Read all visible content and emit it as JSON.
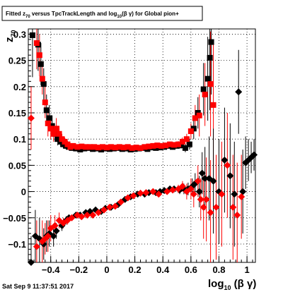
{
  "chart_data": {
    "type": "scatter",
    "title_text": "Fitted  z",
    "title_sub": "70",
    "title_mid": " versus TpcTrackLength and log",
    "title_sub2": "10",
    "title_end": "(β γ) for Global pion+",
    "xlabel": "log",
    "xlabel_sub": "10",
    "xlabel_end": " (β γ)",
    "ylabel": "z",
    "ylabel_sub": "70",
    "xlim": [
      -0.56,
      1.06
    ],
    "ylim": [
      -0.135,
      0.31
    ],
    "xticks": [
      -0.4,
      -0.2,
      0,
      0.2,
      0.4,
      0.6,
      0.8,
      1
    ],
    "xtick_labels": [
      "−0.4",
      "−0.2",
      "0",
      "0.2",
      "0.4",
      "0.6",
      "0.8",
      "1"
    ],
    "yticks": [
      -0.1,
      -0.05,
      0,
      0.05,
      0.1,
      0.15,
      0.2,
      0.25,
      0.3
    ],
    "ytick_labels": [
      "−0.1",
      "−0.05",
      "0",
      "0.05",
      "0.1",
      "0.15",
      "0.2",
      "0.25",
      "0.3"
    ],
    "grid": true,
    "footer": "Sat Sep  9 11:37:51 2017",
    "colors": {
      "black_series": "#000000",
      "red_series": "#ff0000",
      "grid": "#000000",
      "frame": "#000000"
    },
    "series": [
      {
        "marker": "square",
        "color": "#000000",
        "points": [
          {
            "x": -0.53,
            "y": 0.298,
            "err": 0.08
          },
          {
            "x": -0.49,
            "y": 0.28,
            "err": 0.05
          },
          {
            "x": -0.47,
            "y": 0.243,
            "err": 0.04
          },
          {
            "x": -0.45,
            "y": 0.205,
            "err": 0.03
          },
          {
            "x": -0.43,
            "y": 0.155,
            "err": 0.03
          },
          {
            "x": -0.41,
            "y": 0.14,
            "err": 0.025
          },
          {
            "x": -0.39,
            "y": 0.125,
            "err": 0.02
          },
          {
            "x": -0.37,
            "y": 0.11,
            "err": 0.015
          },
          {
            "x": -0.35,
            "y": 0.1,
            "err": 0.012
          },
          {
            "x": -0.33,
            "y": 0.095,
            "err": 0.01
          },
          {
            "x": -0.31,
            "y": 0.09,
            "err": 0.008
          },
          {
            "x": -0.29,
            "y": 0.087,
            "err": 0.007
          },
          {
            "x": -0.27,
            "y": 0.085,
            "err": 0.006
          },
          {
            "x": -0.25,
            "y": 0.083,
            "err": 0.005
          },
          {
            "x": -0.22,
            "y": 0.082,
            "err": 0.005
          },
          {
            "x": -0.19,
            "y": 0.08,
            "err": 0.004
          },
          {
            "x": -0.16,
            "y": 0.082,
            "err": 0.004
          },
          {
            "x": -0.13,
            "y": 0.083,
            "err": 0.004
          },
          {
            "x": -0.1,
            "y": 0.081,
            "err": 0.004
          },
          {
            "x": -0.07,
            "y": 0.082,
            "err": 0.004
          },
          {
            "x": -0.04,
            "y": 0.08,
            "err": 0.004
          },
          {
            "x": -0.01,
            "y": 0.082,
            "err": 0.004
          },
          {
            "x": 0.02,
            "y": 0.081,
            "err": 0.004
          },
          {
            "x": 0.05,
            "y": 0.082,
            "err": 0.004
          },
          {
            "x": 0.08,
            "y": 0.083,
            "err": 0.004
          },
          {
            "x": 0.11,
            "y": 0.081,
            "err": 0.004
          },
          {
            "x": 0.14,
            "y": 0.082,
            "err": 0.004
          },
          {
            "x": 0.17,
            "y": 0.08,
            "err": 0.004
          },
          {
            "x": 0.2,
            "y": 0.081,
            "err": 0.004
          },
          {
            "x": 0.23,
            "y": 0.082,
            "err": 0.004
          },
          {
            "x": 0.26,
            "y": 0.083,
            "err": 0.004
          },
          {
            "x": 0.29,
            "y": 0.081,
            "err": 0.004
          },
          {
            "x": 0.32,
            "y": 0.084,
            "err": 0.004
          },
          {
            "x": 0.35,
            "y": 0.083,
            "err": 0.004
          },
          {
            "x": 0.38,
            "y": 0.084,
            "err": 0.004
          },
          {
            "x": 0.41,
            "y": 0.085,
            "err": 0.005
          },
          {
            "x": 0.44,
            "y": 0.087,
            "err": 0.005
          },
          {
            "x": 0.47,
            "y": 0.085,
            "err": 0.005
          },
          {
            "x": 0.5,
            "y": 0.087,
            "err": 0.005
          },
          {
            "x": 0.53,
            "y": 0.088,
            "err": 0.006
          },
          {
            "x": 0.56,
            "y": 0.083,
            "err": 0.008
          },
          {
            "x": 0.59,
            "y": 0.09,
            "err": 0.01
          },
          {
            "x": 0.62,
            "y": 0.12,
            "err": 0.02
          },
          {
            "x": 0.65,
            "y": 0.15,
            "err": 0.03
          },
          {
            "x": 0.69,
            "y": 0.195,
            "err": 0.05
          },
          {
            "x": 0.72,
            "y": 0.215,
            "err": 0.08
          },
          {
            "x": 0.735,
            "y": 0.255,
            "err": 0.1
          },
          {
            "x": 0.745,
            "y": 0.285,
            "err": 0.1
          }
        ]
      },
      {
        "marker": "square",
        "color": "#ff0000",
        "points": [
          {
            "x": -0.5,
            "y": 0.283,
            "err": 0.05
          },
          {
            "x": -0.48,
            "y": 0.26,
            "err": 0.04
          },
          {
            "x": -0.46,
            "y": 0.215,
            "err": 0.03
          },
          {
            "x": -0.44,
            "y": 0.17,
            "err": 0.03
          },
          {
            "x": -0.42,
            "y": 0.13,
            "err": 0.025
          },
          {
            "x": -0.4,
            "y": 0.12,
            "err": 0.02
          },
          {
            "x": -0.38,
            "y": 0.11,
            "err": 0.015
          },
          {
            "x": -0.36,
            "y": 0.12,
            "err": 0.02
          },
          {
            "x": -0.34,
            "y": 0.11,
            "err": 0.015
          },
          {
            "x": -0.32,
            "y": 0.1,
            "err": 0.01
          },
          {
            "x": -0.3,
            "y": 0.095,
            "err": 0.008
          },
          {
            "x": -0.28,
            "y": 0.09,
            "err": 0.007
          },
          {
            "x": -0.26,
            "y": 0.085,
            "err": 0.006
          },
          {
            "x": -0.24,
            "y": 0.087,
            "err": 0.005
          },
          {
            "x": -0.21,
            "y": 0.085,
            "err": 0.005
          },
          {
            "x": -0.18,
            "y": 0.086,
            "err": 0.004
          },
          {
            "x": -0.15,
            "y": 0.085,
            "err": 0.004
          },
          {
            "x": -0.12,
            "y": 0.085,
            "err": 0.004
          },
          {
            "x": -0.09,
            "y": 0.085,
            "err": 0.004
          },
          {
            "x": -0.06,
            "y": 0.084,
            "err": 0.004
          },
          {
            "x": -0.03,
            "y": 0.085,
            "err": 0.004
          },
          {
            "x": 0.0,
            "y": 0.084,
            "err": 0.004
          },
          {
            "x": 0.03,
            "y": 0.085,
            "err": 0.004
          },
          {
            "x": 0.06,
            "y": 0.084,
            "err": 0.004
          },
          {
            "x": 0.09,
            "y": 0.085,
            "err": 0.004
          },
          {
            "x": 0.12,
            "y": 0.084,
            "err": 0.004
          },
          {
            "x": 0.15,
            "y": 0.085,
            "err": 0.004
          },
          {
            "x": 0.18,
            "y": 0.083,
            "err": 0.004
          },
          {
            "x": 0.21,
            "y": 0.084,
            "err": 0.004
          },
          {
            "x": 0.24,
            "y": 0.083,
            "err": 0.004
          },
          {
            "x": 0.27,
            "y": 0.085,
            "err": 0.004
          },
          {
            "x": 0.3,
            "y": 0.086,
            "err": 0.004
          },
          {
            "x": 0.33,
            "y": 0.087,
            "err": 0.004
          },
          {
            "x": 0.36,
            "y": 0.088,
            "err": 0.004
          },
          {
            "x": 0.39,
            "y": 0.087,
            "err": 0.005
          },
          {
            "x": 0.42,
            "y": 0.088,
            "err": 0.005
          },
          {
            "x": 0.45,
            "y": 0.09,
            "err": 0.005
          },
          {
            "x": 0.48,
            "y": 0.089,
            "err": 0.005
          },
          {
            "x": 0.51,
            "y": 0.09,
            "err": 0.006
          },
          {
            "x": 0.54,
            "y": 0.095,
            "err": 0.008
          },
          {
            "x": 0.57,
            "y": 0.1,
            "err": 0.01
          },
          {
            "x": 0.6,
            "y": 0.115,
            "err": 0.015
          },
          {
            "x": 0.63,
            "y": 0.14,
            "err": 0.025
          },
          {
            "x": 0.66,
            "y": 0.145,
            "err": 0.04
          },
          {
            "x": 0.7,
            "y": 0.185,
            "err": 0.06
          },
          {
            "x": 0.74,
            "y": 0.205,
            "err": 0.1
          },
          {
            "x": 0.76,
            "y": 0.165,
            "err": 0.12
          }
        ]
      },
      {
        "marker": "diamond",
        "color": "#000000",
        "points": [
          {
            "x": -0.54,
            "y": -0.135,
            "err": 0.05
          },
          {
            "x": -0.51,
            "y": -0.085,
            "err": 0.05
          },
          {
            "x": -0.48,
            "y": -0.09,
            "err": 0.04
          },
          {
            "x": -0.45,
            "y": -0.1,
            "err": 0.03
          },
          {
            "x": -0.43,
            "y": -0.085,
            "err": 0.03
          },
          {
            "x": -0.41,
            "y": -0.08,
            "err": 0.025
          },
          {
            "x": -0.38,
            "y": -0.085,
            "err": 0.02
          },
          {
            "x": -0.36,
            "y": -0.075,
            "err": 0.015
          },
          {
            "x": -0.32,
            "y": -0.065,
            "err": 0.01
          },
          {
            "x": -0.29,
            "y": -0.055,
            "err": 0.008
          },
          {
            "x": -0.27,
            "y": -0.05,
            "err": 0.006
          },
          {
            "x": -0.22,
            "y": -0.045,
            "err": 0.005
          },
          {
            "x": -0.19,
            "y": -0.045,
            "err": 0.005
          },
          {
            "x": -0.15,
            "y": -0.04,
            "err": 0.004
          },
          {
            "x": -0.12,
            "y": -0.038,
            "err": 0.004
          },
          {
            "x": -0.08,
            "y": -0.035,
            "err": 0.004
          },
          {
            "x": -0.04,
            "y": -0.038,
            "err": 0.004
          },
          {
            "x": -0.01,
            "y": -0.032,
            "err": 0.004
          },
          {
            "x": 0.03,
            "y": -0.03,
            "err": 0.004
          },
          {
            "x": 0.08,
            "y": -0.025,
            "err": 0.004
          },
          {
            "x": 0.13,
            "y": -0.015,
            "err": 0.004
          },
          {
            "x": 0.17,
            "y": -0.01,
            "err": 0.004
          },
          {
            "x": 0.22,
            "y": -0.005,
            "err": 0.004
          },
          {
            "x": 0.27,
            "y": -0.005,
            "err": 0.004
          },
          {
            "x": 0.3,
            "y": -0.002,
            "err": 0.004
          },
          {
            "x": 0.35,
            "y": -0.002,
            "err": 0.004
          },
          {
            "x": 0.38,
            "y": 0.0,
            "err": 0.005
          },
          {
            "x": 0.41,
            "y": 0.002,
            "err": 0.005
          },
          {
            "x": 0.45,
            "y": 0.005,
            "err": 0.005
          },
          {
            "x": 0.48,
            "y": 0.005,
            "err": 0.006
          },
          {
            "x": 0.52,
            "y": 0.003,
            "err": 0.008
          },
          {
            "x": 0.55,
            "y": 0.005,
            "err": 0.01
          },
          {
            "x": 0.58,
            "y": 0.005,
            "err": 0.012
          },
          {
            "x": 0.61,
            "y": 0.01,
            "err": 0.015
          },
          {
            "x": 0.63,
            "y": 0.015,
            "err": 0.02
          },
          {
            "x": 0.66,
            "y": 0.0,
            "err": 0.03
          },
          {
            "x": 0.68,
            "y": 0.035,
            "err": 0.04
          },
          {
            "x": 0.7,
            "y": 0.025,
            "err": 0.06
          },
          {
            "x": 0.73,
            "y": 0.025,
            "err": 0.08
          },
          {
            "x": 0.76,
            "y": 0.02,
            "err": 0.1
          },
          {
            "x": 0.8,
            "y": 0.0,
            "err": 0.1
          },
          {
            "x": 0.84,
            "y": 0.06,
            "err": 0.1
          },
          {
            "x": 0.88,
            "y": 0.03,
            "err": 0.1
          },
          {
            "x": 0.91,
            "y": -0.005,
            "err": 0.1
          },
          {
            "x": 0.94,
            "y": 0.19,
            "err": 0.08
          },
          {
            "x": 0.97,
            "y": 0.0,
            "err": 0.08
          },
          {
            "x": 0.99,
            "y": 0.055,
            "err": 0.05
          },
          {
            "x": 1.01,
            "y": 0.06,
            "err": 0.04
          },
          {
            "x": 1.03,
            "y": 0.065,
            "err": 0.03
          },
          {
            "x": 1.05,
            "y": 0.07,
            "err": 0.03
          }
        ]
      },
      {
        "marker": "diamond",
        "color": "#ff0000",
        "points": [
          {
            "x": -0.54,
            "y": 0.14,
            "err": 0.06
          },
          {
            "x": -0.5,
            "y": -0.105,
            "err": 0.05
          },
          {
            "x": -0.46,
            "y": -0.095,
            "err": 0.04
          },
          {
            "x": -0.44,
            "y": -0.09,
            "err": 0.03
          },
          {
            "x": -0.42,
            "y": -0.085,
            "err": 0.03
          },
          {
            "x": -0.4,
            "y": -0.07,
            "err": 0.025
          },
          {
            "x": -0.37,
            "y": -0.065,
            "err": 0.02
          },
          {
            "x": -0.34,
            "y": -0.055,
            "err": 0.015
          },
          {
            "x": -0.31,
            "y": -0.06,
            "err": 0.01
          },
          {
            "x": -0.28,
            "y": -0.055,
            "err": 0.008
          },
          {
            "x": -0.25,
            "y": -0.05,
            "err": 0.006
          },
          {
            "x": -0.21,
            "y": -0.045,
            "err": 0.005
          },
          {
            "x": -0.18,
            "y": -0.048,
            "err": 0.005
          },
          {
            "x": -0.14,
            "y": -0.045,
            "err": 0.004
          },
          {
            "x": -0.1,
            "y": -0.045,
            "err": 0.004
          },
          {
            "x": -0.06,
            "y": -0.04,
            "err": 0.004
          },
          {
            "x": -0.02,
            "y": -0.035,
            "err": 0.004
          },
          {
            "x": 0.02,
            "y": -0.03,
            "err": 0.004
          },
          {
            "x": 0.06,
            "y": -0.028,
            "err": 0.004
          },
          {
            "x": 0.1,
            "y": -0.02,
            "err": 0.004
          },
          {
            "x": 0.15,
            "y": -0.012,
            "err": 0.004
          },
          {
            "x": 0.19,
            "y": -0.008,
            "err": 0.004
          },
          {
            "x": 0.24,
            "y": -0.003,
            "err": 0.004
          },
          {
            "x": 0.28,
            "y": -0.002,
            "err": 0.004
          },
          {
            "x": 0.33,
            "y": 0.0,
            "err": 0.004
          },
          {
            "x": 0.37,
            "y": -0.005,
            "err": 0.005
          },
          {
            "x": 0.43,
            "y": 0.0,
            "err": 0.005
          },
          {
            "x": 0.47,
            "y": 0.003,
            "err": 0.006
          },
          {
            "x": 0.51,
            "y": 0.005,
            "err": 0.008
          },
          {
            "x": 0.54,
            "y": 0.01,
            "err": 0.01
          },
          {
            "x": 0.57,
            "y": 0.0,
            "err": 0.015
          },
          {
            "x": 0.6,
            "y": 0.005,
            "err": 0.02
          },
          {
            "x": 0.62,
            "y": -0.005,
            "err": 0.025
          },
          {
            "x": 0.65,
            "y": 0.02,
            "err": 0.03
          },
          {
            "x": 0.67,
            "y": -0.015,
            "err": 0.04
          },
          {
            "x": 0.69,
            "y": -0.03,
            "err": 0.06
          },
          {
            "x": 0.71,
            "y": -0.015,
            "err": 0.08
          },
          {
            "x": 0.74,
            "y": -0.04,
            "err": 0.1
          },
          {
            "x": 0.78,
            "y": -0.03,
            "err": 0.1
          },
          {
            "x": 0.82,
            "y": -0.005,
            "err": 0.1
          },
          {
            "x": 0.86,
            "y": 0.05,
            "err": 0.1
          },
          {
            "x": 0.9,
            "y": -0.03,
            "err": 0.1
          },
          {
            "x": 0.93,
            "y": -0.045,
            "err": 0.1
          },
          {
            "x": 0.96,
            "y": -0.01,
            "err": 0.08
          }
        ]
      }
    ]
  }
}
